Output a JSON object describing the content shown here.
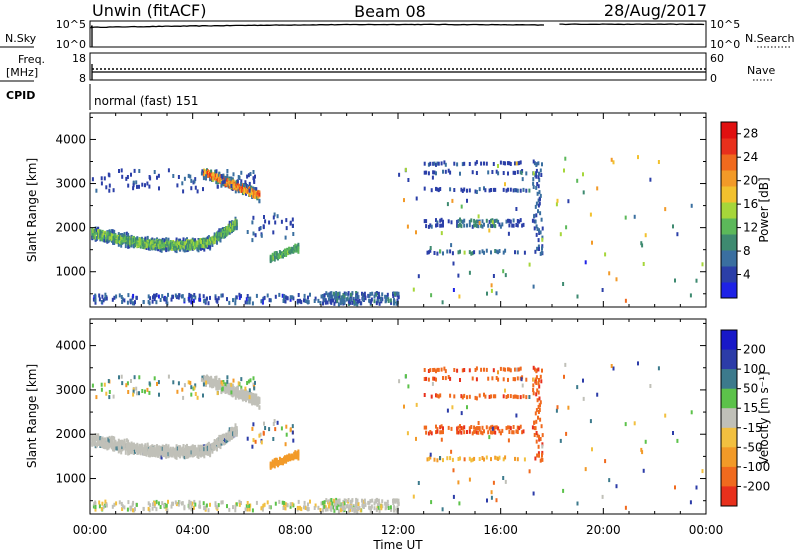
{
  "header": {
    "station": "Unwin (fitACF)",
    "beam": "Beam 08",
    "date": "28/Aug/2017"
  },
  "panels": {
    "nsky": {
      "left_label": "N.Sky",
      "right_label": "N.Search",
      "left_ticks": [
        "10^5",
        "10^0"
      ],
      "right_ticks": [
        "10^5",
        "10^0"
      ]
    },
    "freq": {
      "left_label_1": "Freq.",
      "left_label_2": "[MHz]",
      "right_label": "Nave",
      "left_ticks": [
        "18",
        "8"
      ],
      "right_ticks": [
        "60",
        "0"
      ]
    },
    "cpid": {
      "label": "CPID",
      "text": "normal (fast) 151"
    }
  },
  "colors": {
    "power": [
      "#1e22e6",
      "#2b3fa8",
      "#3a6fa0",
      "#3e8a70",
      "#5cb85a",
      "#a6d63a",
      "#f2c12e",
      "#f29a28",
      "#f06a1e",
      "#e8301c",
      "#e01010"
    ],
    "velocity": [
      "#1818c8",
      "#2c3ca8",
      "#3c7a8c",
      "#3e8a50",
      "#5cc24a",
      "#c0c0b8",
      "#f2c040",
      "#f29a28",
      "#f06a1e",
      "#e8301c"
    ]
  },
  "chart_data": [
    {
      "type": "heatmap",
      "title": "Power",
      "ylabel": "Slant Range [km]",
      "xlabel": "",
      "ylim": [
        200,
        4600
      ],
      "yticks": [
        "1000",
        "2000",
        "3000",
        "4000"
      ],
      "xticks": [
        "00:00",
        "04:00",
        "08:00",
        "12:00",
        "16:00",
        "20:00",
        "00:00"
      ],
      "colorbar": {
        "label": "Power [dB]",
        "ticks": [
          "4",
          "8",
          "12",
          "16",
          "20",
          "24",
          "28"
        ],
        "range": [
          0,
          30
        ]
      },
      "features": [
        {
          "time_start": "00:00",
          "time_end": "05:30",
          "range_km": [
            1550,
            2000
          ],
          "dominant_db": 10
        },
        {
          "time_start": "04:30",
          "time_end": "06:30",
          "range_km": [
            2700,
            3300
          ],
          "dominant_db": 20
        },
        {
          "time_start": "07:00",
          "time_end": "08:00",
          "range_km": [
            1300,
            1600
          ],
          "dominant_db": 12
        },
        {
          "time_start": "09:00",
          "time_end": "12:00",
          "range_km": [
            250,
            500
          ],
          "dominant_db": 8
        },
        {
          "time_start": "13:00",
          "time_end": "17:00",
          "range_km": [
            1400,
            3500
          ],
          "dominant_db": 6
        }
      ]
    },
    {
      "type": "heatmap",
      "title": "Velocity",
      "ylabel": "Slant Range [km]",
      "xlabel": "Time UT",
      "ylim": [
        200,
        4600
      ],
      "yticks": [
        "1000",
        "2000",
        "3000",
        "4000"
      ],
      "xticks": [
        "00:00",
        "04:00",
        "08:00",
        "12:00",
        "16:00",
        "20:00",
        "00:00"
      ],
      "colorbar": {
        "label": "Velocity [m s⁻¹]",
        "ticks": [
          "200",
          "100",
          "50",
          "15",
          "-15",
          "-50",
          "-100",
          "-200"
        ],
        "range": [
          -250,
          250
        ]
      },
      "features": [
        {
          "time_start": "00:00",
          "time_end": "06:00",
          "range_km": [
            1550,
            3300
          ],
          "dominant_ms": 0
        },
        {
          "time_start": "07:15",
          "time_end": "08:15",
          "range_km": [
            1250,
            1550
          ],
          "dominant_ms": -80
        },
        {
          "time_start": "13:00",
          "time_end": "17:00",
          "range_km": [
            1400,
            3500
          ],
          "dominant_ms": -150
        }
      ]
    }
  ]
}
